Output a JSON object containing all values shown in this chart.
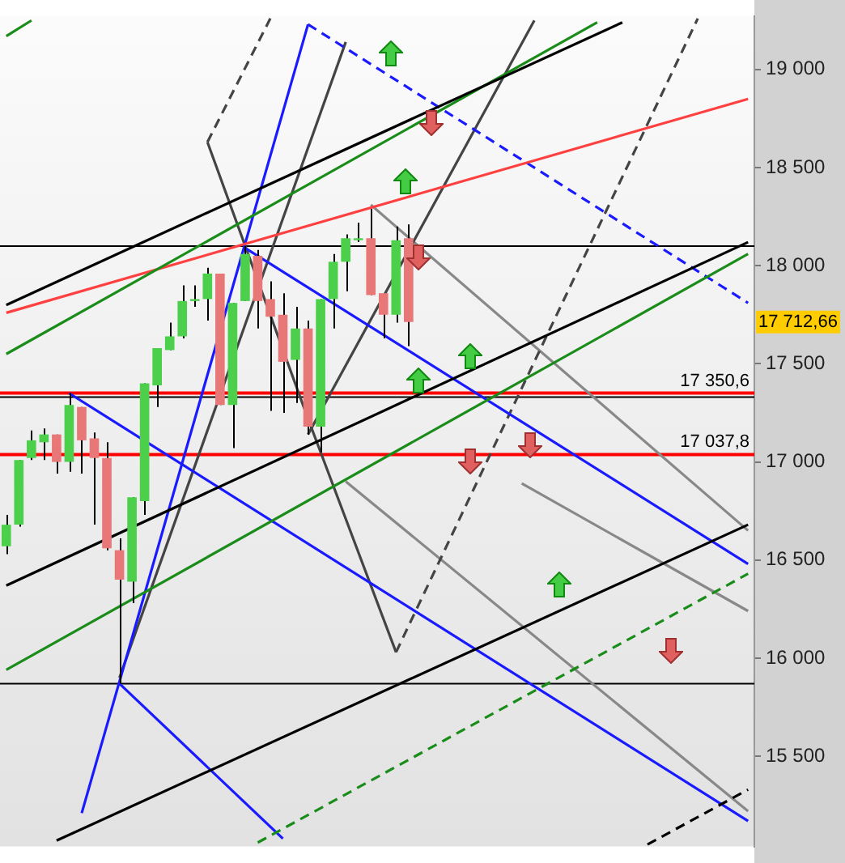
{
  "chart_data": {
    "type": "candlestick",
    "tick_labels": "y",
    "categories": [
      null,
      null,
      null,
      null,
      null,
      null,
      null,
      null,
      null,
      null,
      null,
      null,
      null,
      null,
      null,
      null,
      null,
      null,
      null,
      null,
      null,
      null,
      null,
      null,
      null,
      null,
      null,
      null,
      null,
      null,
      null,
      null,
      null,
      null,
      null,
      null,
      null,
      null,
      null,
      null,
      null,
      null,
      null,
      null,
      null,
      null,
      null,
      null,
      null,
      null,
      null,
      null,
      null,
      null,
      null,
      null,
      null,
      null,
      null,
      null
    ],
    "ohlc": [
      [
        16570,
        16730,
        16530,
        16680
      ],
      [
        16680,
        17010,
        16670,
        17010
      ],
      [
        17020,
        17160,
        17010,
        17110
      ],
      [
        17100,
        17170,
        17010,
        17140
      ],
      [
        17140,
        17140,
        16940,
        17000
      ],
      [
        17000,
        17350,
        16950,
        17290
      ],
      [
        17280,
        17280,
        16940,
        17110
      ],
      [
        17120,
        17150,
        16680,
        17020
      ],
      [
        17020,
        17100,
        16550,
        16560
      ],
      [
        16550,
        16610,
        15870,
        16400
      ],
      [
        16390,
        16820,
        16280,
        16820
      ],
      [
        16800,
        17400,
        16730,
        17400
      ],
      [
        17390,
        17580,
        17280,
        17580
      ],
      [
        17570,
        17710,
        17570,
        17640
      ],
      [
        17640,
        17900,
        17630,
        17820
      ],
      [
        17820,
        17900,
        17790,
        17830
      ],
      [
        17830,
        17990,
        17720,
        17960
      ],
      [
        17960,
        17960,
        17290,
        17290
      ],
      [
        17290,
        17810,
        17070,
        17810
      ],
      [
        17820,
        18100,
        17820,
        18060
      ],
      [
        18050,
        18080,
        17680,
        17820
      ],
      [
        17830,
        17920,
        17260,
        17740
      ],
      [
        17750,
        17860,
        17250,
        17510
      ],
      [
        17520,
        17790,
        17300,
        17680
      ],
      [
        17680,
        17720,
        17140,
        17180
      ],
      [
        17180,
        17830,
        17050,
        17830
      ],
      [
        17830,
        18060,
        17680,
        18020
      ],
      [
        18020,
        18160,
        17870,
        18140
      ],
      [
        18130,
        18220,
        18120,
        18140
      ],
      [
        18140,
        18290,
        17850,
        17850
      ],
      [
        17860,
        17860,
        17630,
        17750
      ],
      [
        17750,
        18200,
        17710,
        18130
      ],
      [
        18140,
        18210,
        17590,
        17712.66
      ],
      null,
      null,
      null,
      null,
      null,
      null,
      null,
      null,
      null,
      null,
      null,
      null,
      null,
      null,
      null,
      null,
      null,
      null,
      null,
      null,
      null,
      null,
      null,
      null,
      null,
      null,
      null
    ],
    "colors": [
      "#4cd04c",
      "#4cd04c",
      "#4cd04c",
      "#4cd04c",
      "#e87878",
      "#4cd04c",
      "#e87878",
      "#e87878",
      "#e87878",
      "#e87878",
      "#4cd04c",
      "#4cd04c",
      "#4cd04c",
      "#4cd04c",
      "#4cd04c",
      "#4cd04c",
      "#4cd04c",
      "#e87878",
      "#4cd04c",
      "#4cd04c",
      "#e87878",
      "#e87878",
      "#e87878",
      "#4cd04c",
      "#e87878",
      "#4cd04c",
      "#4cd04c",
      "#4cd04c",
      "#4cd04c",
      "#e87878",
      "#e87878",
      "#4cd04c",
      "#e87878",
      null,
      null,
      null,
      null,
      null,
      null,
      null,
      null,
      null,
      null,
      null,
      null,
      null,
      null,
      null,
      null,
      null,
      null,
      null,
      null,
      null,
      null,
      null,
      null,
      null,
      null,
      null
    ],
    "ylim": [
      15040,
      19270
    ],
    "yticks": [
      {
        "value": 15500,
        "label": "15 500"
      },
      {
        "value": 16000,
        "label": "16 000"
      },
      {
        "value": 16500,
        "label": "16 500"
      },
      {
        "value": 17000,
        "label": "17 000"
      },
      {
        "value": 17500,
        "label": "17 500"
      },
      {
        "value": 18000,
        "label": "18 000"
      },
      {
        "value": 18500,
        "label": "18 500"
      },
      {
        "value": 19000,
        "label": "19 000"
      }
    ],
    "ref_lines": [
      {
        "axis": "y",
        "value": 17350.6,
        "label": "17 350,6",
        "color": "#ff0000"
      },
      {
        "axis": "y",
        "value": 17037.8,
        "label": "17 037,8",
        "color": "#ff0000"
      },
      {
        "axis": "y",
        "value": 17330,
        "color": "#000000"
      },
      {
        "axis": "y",
        "value": 18100,
        "color": "#000000"
      },
      {
        "axis": "y",
        "value": 15870,
        "color": "#000000"
      }
    ],
    "annotations": [
      "17 712,66"
    ],
    "series": [
      {
        "type": "line",
        "color": "#000000",
        "values": [
          17800,
          null,
          null,
          null,
          null,
          null,
          null,
          null,
          null,
          null,
          null,
          null,
          null,
          null,
          null,
          null,
          null,
          null,
          null,
          null,
          null,
          null,
          null,
          null,
          null,
          null,
          null,
          null,
          null,
          null,
          null,
          null,
          null,
          null,
          null,
          null,
          null,
          null,
          null,
          null,
          null,
          null,
          null,
          null,
          null,
          null,
          null,
          null,
          null,
          19240,
          null,
          null,
          null,
          null,
          null,
          null,
          null,
          null,
          null,
          null
        ]
      },
      {
        "type": "line",
        "color": "#000000",
        "values": [
          16370,
          null,
          null,
          null,
          null,
          null,
          null,
          null,
          null,
          null,
          null,
          null,
          null,
          null,
          null,
          null,
          null,
          null,
          null,
          null,
          null,
          null,
          null,
          null,
          null,
          null,
          null,
          null,
          null,
          null,
          null,
          null,
          null,
          null,
          null,
          null,
          null,
          null,
          null,
          null,
          null,
          null,
          null,
          null,
          null,
          null,
          null,
          null,
          null,
          null,
          null,
          null,
          null,
          null,
          null,
          null,
          null,
          null,
          null,
          18120
        ]
      },
      {
        "type": "line",
        "color": "#000000",
        "values": [
          null,
          null,
          null,
          null,
          15070,
          null,
          null,
          null,
          null,
          null,
          null,
          null,
          null,
          null,
          null,
          null,
          null,
          null,
          null,
          null,
          null,
          null,
          null,
          null,
          null,
          null,
          null,
          null,
          null,
          null,
          null,
          null,
          null,
          null,
          null,
          null,
          null,
          null,
          null,
          null,
          null,
          null,
          null,
          null,
          null,
          null,
          null,
          null,
          null,
          null,
          null,
          null,
          null,
          null,
          null,
          null,
          null,
          null,
          null,
          16680
        ]
      },
      {
        "type": "line",
        "color": "#000000",
        "line_style": "dashed",
        "values": [
          null,
          null,
          null,
          null,
          null,
          null,
          null,
          null,
          null,
          null,
          null,
          null,
          null,
          null,
          null,
          null,
          null,
          null,
          null,
          null,
          null,
          null,
          null,
          null,
          null,
          null,
          null,
          null,
          null,
          null,
          null,
          null,
          null,
          null,
          null,
          null,
          null,
          null,
          null,
          null,
          null,
          null,
          null,
          null,
          null,
          null,
          null,
          null,
          null,
          null,
          null,
          15050,
          null,
          null,
          null,
          null,
          null,
          null,
          null,
          15330
        ]
      },
      {
        "type": "line",
        "color": "#1a8c1a",
        "values": [
          19170,
          null,
          19250,
          null,
          null,
          null,
          null,
          null,
          null,
          null,
          null,
          null,
          null,
          null,
          null,
          null,
          null,
          null,
          null,
          null,
          null,
          null,
          null,
          null,
          null,
          null,
          null,
          null,
          null,
          null,
          null,
          null,
          null,
          null,
          null,
          null,
          null,
          null,
          null,
          null,
          null,
          null,
          null,
          null,
          null,
          null,
          null,
          null,
          null,
          null,
          null,
          null,
          null,
          null,
          null,
          null,
          null,
          null,
          null,
          null
        ]
      },
      {
        "type": "line",
        "color": "#1a8c1a",
        "values": [
          17550,
          null,
          null,
          null,
          null,
          null,
          null,
          null,
          null,
          null,
          null,
          null,
          null,
          null,
          null,
          null,
          null,
          null,
          null,
          null,
          null,
          null,
          null,
          null,
          null,
          null,
          null,
          null,
          null,
          null,
          null,
          null,
          null,
          null,
          null,
          null,
          null,
          null,
          null,
          null,
          null,
          null,
          null,
          null,
          null,
          null,
          null,
          19240,
          null,
          null,
          null,
          null,
          null,
          null,
          null,
          null,
          null,
          null,
          null,
          null
        ]
      },
      {
        "type": "line",
        "color": "#1a8c1a",
        "values": [
          15940,
          null,
          null,
          null,
          null,
          null,
          null,
          null,
          null,
          null,
          null,
          null,
          null,
          null,
          null,
          null,
          null,
          null,
          null,
          null,
          null,
          null,
          null,
          null,
          null,
          null,
          null,
          null,
          null,
          null,
          null,
          null,
          null,
          null,
          null,
          null,
          null,
          null,
          null,
          null,
          null,
          null,
          null,
          null,
          null,
          null,
          null,
          null,
          null,
          null,
          null,
          null,
          null,
          null,
          null,
          null,
          null,
          null,
          null,
          18060
        ]
      },
      {
        "type": "line",
        "color": "#1a8c1a",
        "line_style": "dashed",
        "values": [
          null,
          null,
          null,
          null,
          null,
          null,
          null,
          null,
          null,
          null,
          null,
          null,
          null,
          null,
          null,
          null,
          null,
          null,
          null,
          null,
          15060,
          null,
          null,
          null,
          null,
          null,
          null,
          null,
          null,
          null,
          null,
          null,
          null,
          null,
          null,
          null,
          null,
          null,
          null,
          null,
          null,
          null,
          null,
          null,
          null,
          null,
          null,
          null,
          null,
          null,
          null,
          null,
          null,
          null,
          null,
          null,
          null,
          null,
          null,
          16430
        ]
      },
      {
        "type": "line",
        "color": "#ff4040",
        "values": [
          17760,
          null,
          null,
          null,
          null,
          null,
          null,
          null,
          null,
          null,
          null,
          null,
          null,
          null,
          null,
          null,
          null,
          null,
          null,
          null,
          null,
          null,
          null,
          null,
          null,
          null,
          null,
          null,
          null,
          null,
          null,
          null,
          null,
          null,
          null,
          null,
          null,
          null,
          null,
          null,
          null,
          null,
          null,
          null,
          null,
          null,
          null,
          null,
          null,
          null,
          null,
          null,
          null,
          null,
          null,
          null,
          null,
          null,
          null,
          18850
        ]
      },
      {
        "type": "line",
        "color": "#1a1aff",
        "values": [
          null,
          null,
          null,
          null,
          null,
          null,
          15210,
          null,
          null,
          null,
          null,
          null,
          null,
          null,
          null,
          null,
          null,
          null,
          null,
          null,
          null,
          null,
          null,
          null,
          19230,
          null,
          null,
          null,
          null,
          null,
          null,
          null,
          null,
          null,
          null,
          null,
          null,
          null,
          null,
          null,
          null,
          null,
          null,
          null,
          null,
          null,
          null,
          null,
          null,
          null,
          null,
          null,
          null,
          null,
          null,
          null,
          null,
          null,
          null,
          null
        ]
      },
      {
        "type": "line",
        "color": "#1a1aff",
        "line_style": "dashed",
        "values": [
          null,
          null,
          null,
          null,
          null,
          null,
          null,
          null,
          null,
          null,
          null,
          null,
          null,
          null,
          null,
          null,
          null,
          null,
          null,
          null,
          null,
          null,
          null,
          null,
          19230,
          null,
          null,
          null,
          null,
          null,
          null,
          null,
          null,
          null,
          null,
          null,
          null,
          null,
          null,
          null,
          null,
          null,
          null,
          null,
          null,
          null,
          null,
          null,
          null,
          null,
          null,
          null,
          null,
          null,
          null,
          null,
          null,
          null,
          null,
          17810
        ]
      },
      {
        "type": "line",
        "color": "#1a1aff",
        "values": [
          null,
          null,
          null,
          null,
          null,
          17350,
          null,
          null,
          null,
          null,
          null,
          null,
          null,
          null,
          null,
          null,
          null,
          null,
          null,
          null,
          null,
          null,
          null,
          null,
          null,
          null,
          null,
          null,
          null,
          null,
          null,
          null,
          null,
          null,
          null,
          null,
          null,
          null,
          null,
          null,
          null,
          null,
          null,
          null,
          null,
          null,
          null,
          null,
          null,
          null,
          null,
          null,
          null,
          null,
          null,
          null,
          null,
          null,
          null,
          15170
        ]
      },
      {
        "type": "line",
        "color": "#1a1aff",
        "values": [
          null,
          null,
          null,
          null,
          null,
          null,
          null,
          null,
          null,
          null,
          null,
          null,
          null,
          null,
          null,
          null,
          null,
          null,
          null,
          18090,
          null,
          null,
          null,
          null,
          null,
          null,
          null,
          null,
          null,
          null,
          null,
          null,
          null,
          null,
          null,
          null,
          null,
          null,
          null,
          null,
          null,
          null,
          null,
          null,
          null,
          null,
          null,
          null,
          null,
          null,
          null,
          null,
          null,
          null,
          null,
          null,
          null,
          null,
          null,
          16480
        ]
      },
      {
        "type": "line",
        "color": "#1a1aff",
        "values": [
          null,
          null,
          null,
          null,
          null,
          null,
          null,
          null,
          null,
          15870,
          null,
          null,
          null,
          null,
          null,
          null,
          null,
          null,
          null,
          null,
          null,
          null,
          15080,
          null,
          null,
          null,
          null,
          null,
          null,
          null,
          null,
          null,
          null,
          null,
          null,
          null,
          null,
          null,
          null,
          null,
          null,
          null,
          null,
          null,
          null,
          null,
          null,
          null,
          null,
          null,
          null,
          null,
          null,
          null,
          null,
          null,
          null,
          null,
          null,
          null
        ]
      },
      {
        "type": "line",
        "color": "#444444",
        "values": [
          null,
          null,
          null,
          null,
          null,
          null,
          null,
          null,
          null,
          15900,
          null,
          null,
          null,
          null,
          null,
          null,
          null,
          null,
          null,
          null,
          null,
          null,
          null,
          null,
          null,
          null,
          null,
          19140,
          null,
          null,
          null,
          null,
          null,
          null,
          null,
          null,
          null,
          null,
          null,
          null,
          null,
          null,
          null,
          null,
          null,
          null,
          null,
          null,
          null,
          null,
          null,
          null,
          null,
          null,
          null,
          null,
          null,
          null,
          null,
          null
        ]
      },
      {
        "type": "line",
        "color": "#444444",
        "values": [
          null,
          null,
          null,
          null,
          null,
          null,
          null,
          null,
          null,
          null,
          null,
          null,
          null,
          null,
          null,
          null,
          null,
          null,
          null,
          null,
          null,
          null,
          null,
          null,
          17140,
          null,
          null,
          null,
          null,
          null,
          null,
          null,
          null,
          null,
          null,
          null,
          null,
          null,
          null,
          null,
          null,
          null,
          19250,
          null,
          null,
          null,
          null,
          null,
          null,
          null,
          null,
          null,
          null,
          null,
          null,
          null,
          null,
          null,
          null,
          null
        ]
      },
      {
        "type": "line",
        "color": "#444444",
        "line_style": "dashed",
        "values": [
          null,
          null,
          null,
          null,
          null,
          null,
          null,
          null,
          null,
          null,
          null,
          null,
          null,
          null,
          null,
          null,
          null,
          null,
          null,
          null,
          null,
          null,
          null,
          null,
          null,
          null,
          null,
          null,
          null,
          null,
          null,
          16030,
          null,
          null,
          null,
          null,
          null,
          null,
          null,
          null,
          null,
          null,
          null,
          null,
          null,
          null,
          null,
          null,
          null,
          null,
          null,
          null,
          null,
          null,
          null,
          19260,
          null,
          null,
          null,
          null
        ]
      },
      {
        "type": "line",
        "color": "#444444",
        "line_style": "dashed",
        "values": [
          null,
          null,
          null,
          null,
          null,
          null,
          null,
          null,
          null,
          null,
          null,
          null,
          null,
          null,
          null,
          null,
          18630,
          null,
          null,
          null,
          null,
          19260,
          null,
          null,
          null,
          null,
          null,
          null,
          null,
          null,
          null,
          null,
          null,
          null,
          null,
          null,
          null,
          null,
          null,
          null,
          null,
          null,
          null,
          null,
          null,
          null,
          null,
          null,
          null,
          null,
          null,
          null,
          null,
          null,
          null,
          null,
          null,
          null,
          null,
          null
        ]
      },
      {
        "type": "line",
        "color": "#444444",
        "values": [
          null,
          null,
          null,
          null,
          null,
          null,
          null,
          null,
          null,
          null,
          null,
          null,
          null,
          null,
          null,
          null,
          18630,
          null,
          null,
          null,
          null,
          null,
          null,
          null,
          17220,
          null,
          null,
          null,
          null,
          null,
          null,
          16030,
          null,
          null,
          null,
          null,
          null,
          null,
          null,
          null,
          null,
          null,
          null,
          null,
          null,
          null,
          null,
          null,
          null,
          null,
          null,
          null,
          null,
          null,
          null,
          null,
          null,
          null,
          null,
          null
        ]
      },
      {
        "type": "line",
        "color": "#888888",
        "values": [
          null,
          null,
          null,
          null,
          null,
          null,
          null,
          null,
          null,
          null,
          null,
          null,
          null,
          null,
          null,
          null,
          null,
          null,
          null,
          null,
          null,
          null,
          null,
          null,
          null,
          null,
          null,
          null,
          null,
          18310,
          null,
          null,
          null,
          null,
          null,
          null,
          null,
          null,
          null,
          null,
          null,
          null,
          null,
          null,
          null,
          null,
          null,
          null,
          null,
          null,
          null,
          null,
          null,
          null,
          null,
          null,
          null,
          null,
          null,
          16650
        ]
      },
      {
        "type": "line",
        "color": "#888888",
        "values": [
          null,
          null,
          null,
          null,
          null,
          null,
          null,
          null,
          null,
          null,
          null,
          null,
          null,
          null,
          null,
          null,
          null,
          null,
          null,
          null,
          null,
          null,
          null,
          null,
          null,
          null,
          null,
          16900,
          null,
          null,
          null,
          null,
          null,
          null,
          null,
          null,
          null,
          null,
          null,
          null,
          null,
          null,
          null,
          null,
          null,
          null,
          null,
          null,
          null,
          null,
          null,
          null,
          null,
          null,
          null,
          null,
          null,
          null,
          null,
          15220
        ]
      },
      {
        "type": "line",
        "color": "#888888",
        "values": [
          null,
          null,
          null,
          null,
          null,
          null,
          null,
          null,
          null,
          null,
          null,
          null,
          null,
          null,
          null,
          null,
          null,
          null,
          null,
          null,
          null,
          null,
          null,
          null,
          null,
          null,
          null,
          null,
          null,
          null,
          null,
          null,
          null,
          null,
          null,
          null,
          null,
          null,
          null,
          null,
          null,
          16890,
          null,
          null,
          null,
          null,
          null,
          null,
          null,
          null,
          null,
          null,
          null,
          null,
          null,
          null,
          null,
          null,
          null,
          16240
        ]
      }
    ]
  }
}
